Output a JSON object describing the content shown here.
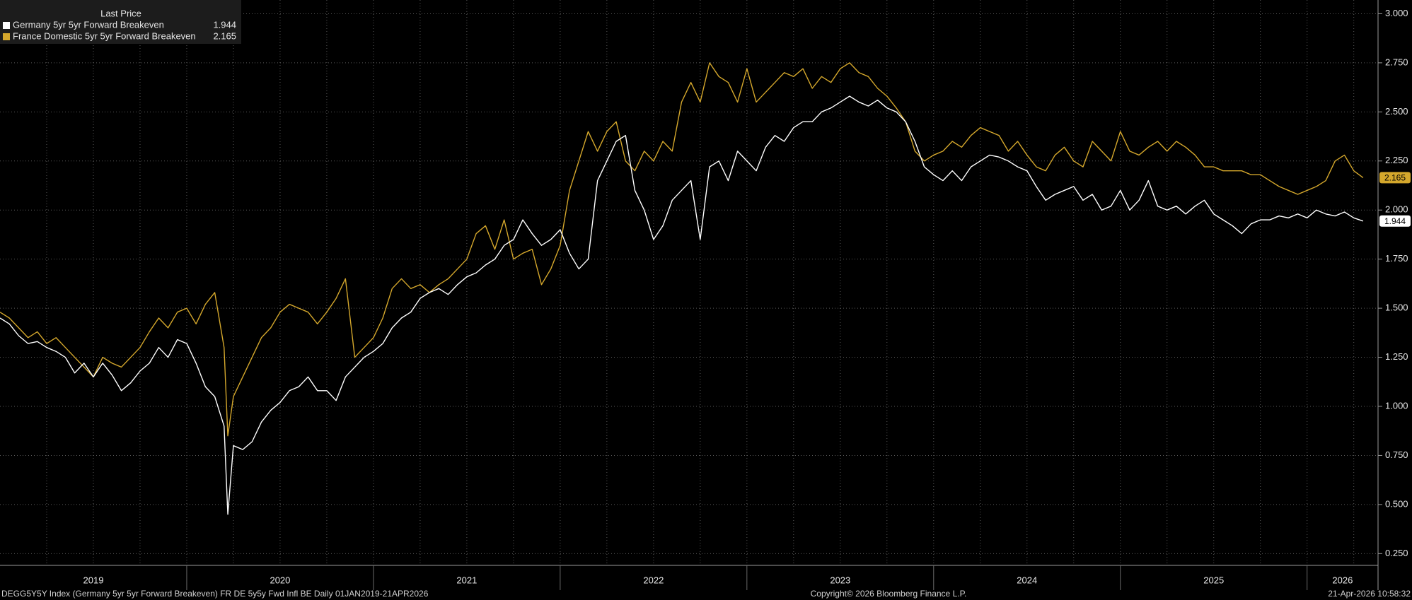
{
  "chart_data": {
    "type": "line",
    "legend_title": "Last Price",
    "legend": "upper left",
    "grid": true,
    "source_note": "DEGG5Y5Y Index (Germany 5yr 5yr Forward Breakeven) FR DE 5y5y Fwd Infl BE Daily 01JAN2019-21APR2026",
    "copyright": "Copyright© 2026 Bloomberg Finance L.P.",
    "timestamp": "21-Apr-2026 10:58:32",
    "xlim": [
      2019.0,
      2026.38
    ],
    "xticks": [
      {
        "value": 2019.5,
        "label": "2019"
      },
      {
        "value": 2020.5,
        "label": "2020"
      },
      {
        "value": 2021.5,
        "label": "2021"
      },
      {
        "value": 2022.5,
        "label": "2022"
      },
      {
        "value": 2023.5,
        "label": "2023"
      },
      {
        "value": 2024.5,
        "label": "2024"
      },
      {
        "value": 2025.5,
        "label": "2025"
      },
      {
        "value": 2026.19,
        "label": "2026"
      }
    ],
    "ylim": [
      0.19,
      3.07
    ],
    "yticks": [
      {
        "value": 0.25,
        "label": "0.250"
      },
      {
        "value": 0.5,
        "label": "0.500"
      },
      {
        "value": 0.75,
        "label": "0.750"
      },
      {
        "value": 1,
        "label": "1.000"
      },
      {
        "value": 1.25,
        "label": "1.250"
      },
      {
        "value": 1.5,
        "label": "1.500"
      },
      {
        "value": 1.75,
        "label": "1.750"
      },
      {
        "value": 2,
        "label": "2.000"
      },
      {
        "value": 2.25,
        "label": "2.250"
      },
      {
        "value": 2.5,
        "label": "2.500"
      },
      {
        "value": 2.75,
        "label": "2.750"
      },
      {
        "value": 3,
        "label": "3.000"
      }
    ],
    "x": [
      2019.0,
      2019.05,
      2019.1,
      2019.15,
      2019.2,
      2019.25,
      2019.3,
      2019.35,
      2019.4,
      2019.45,
      2019.5,
      2019.55,
      2019.6,
      2019.65,
      2019.7,
      2019.75,
      2019.8,
      2019.85,
      2019.9,
      2019.95,
      2020.0,
      2020.05,
      2020.1,
      2020.15,
      2020.2,
      2020.22,
      2020.25,
      2020.3,
      2020.35,
      2020.4,
      2020.45,
      2020.5,
      2020.55,
      2020.6,
      2020.65,
      2020.7,
      2020.75,
      2020.8,
      2020.85,
      2020.9,
      2020.95,
      2021.0,
      2021.05,
      2021.1,
      2021.15,
      2021.2,
      2021.25,
      2021.3,
      2021.35,
      2021.4,
      2021.45,
      2021.5,
      2021.55,
      2021.6,
      2021.65,
      2021.7,
      2021.75,
      2021.8,
      2021.85,
      2021.9,
      2021.95,
      2022.0,
      2022.05,
      2022.1,
      2022.15,
      2022.2,
      2022.25,
      2022.3,
      2022.35,
      2022.4,
      2022.45,
      2022.5,
      2022.55,
      2022.6,
      2022.65,
      2022.7,
      2022.75,
      2022.8,
      2022.85,
      2022.9,
      2022.95,
      2023.0,
      2023.05,
      2023.1,
      2023.15,
      2023.2,
      2023.25,
      2023.3,
      2023.35,
      2023.4,
      2023.45,
      2023.5,
      2023.55,
      2023.6,
      2023.65,
      2023.7,
      2023.75,
      2023.8,
      2023.85,
      2023.9,
      2023.95,
      2024.0,
      2024.05,
      2024.1,
      2024.15,
      2024.2,
      2024.25,
      2024.3,
      2024.35,
      2024.4,
      2024.45,
      2024.5,
      2024.55,
      2024.6,
      2024.65,
      2024.7,
      2024.75,
      2024.8,
      2024.85,
      2024.9,
      2024.95,
      2025.0,
      2025.05,
      2025.1,
      2025.15,
      2025.2,
      2025.25,
      2025.3,
      2025.35,
      2025.4,
      2025.45,
      2025.5,
      2025.55,
      2025.6,
      2025.65,
      2025.7,
      2025.75,
      2025.8,
      2025.85,
      2025.9,
      2025.95,
      2026.0,
      2026.05,
      2026.1,
      2026.15,
      2026.2,
      2026.25,
      2026.3
    ],
    "series": [
      {
        "name": "Germany 5yr 5yr Forward Breakeven",
        "color": "#ffffff",
        "values": [
          1.45,
          1.42,
          1.36,
          1.32,
          1.33,
          1.3,
          1.28,
          1.25,
          1.17,
          1.22,
          1.15,
          1.22,
          1.16,
          1.08,
          1.12,
          1.18,
          1.22,
          1.3,
          1.25,
          1.34,
          1.32,
          1.22,
          1.1,
          1.05,
          0.9,
          0.45,
          0.8,
          0.78,
          0.82,
          0.92,
          0.98,
          1.02,
          1.08,
          1.1,
          1.15,
          1.08,
          1.08,
          1.03,
          1.15,
          1.2,
          1.25,
          1.28,
          1.32,
          1.4,
          1.45,
          1.48,
          1.55,
          1.58,
          1.6,
          1.57,
          1.62,
          1.66,
          1.68,
          1.72,
          1.75,
          1.82,
          1.85,
          1.95,
          1.88,
          1.82,
          1.85,
          1.9,
          1.78,
          1.7,
          1.75,
          2.15,
          2.25,
          2.35,
          2.38,
          2.1,
          2.0,
          1.85,
          1.92,
          2.05,
          2.1,
          2.15,
          1.85,
          2.22,
          2.25,
          2.15,
          2.3,
          2.25,
          2.2,
          2.32,
          2.38,
          2.35,
          2.42,
          2.45,
          2.45,
          2.5,
          2.52,
          2.55,
          2.58,
          2.55,
          2.53,
          2.56,
          2.52,
          2.5,
          2.45,
          2.35,
          2.22,
          2.18,
          2.15,
          2.2,
          2.15,
          2.22,
          2.25,
          2.28,
          2.27,
          2.25,
          2.22,
          2.2,
          2.12,
          2.05,
          2.08,
          2.1,
          2.12,
          2.05,
          2.08,
          2.0,
          2.02,
          2.1,
          2.0,
          2.05,
          2.15,
          2.02,
          2.0,
          2.02,
          1.98,
          2.02,
          2.05,
          1.98,
          1.95,
          1.92,
          1.88,
          1.93,
          1.95,
          1.95,
          1.97,
          1.96,
          1.98,
          1.96,
          2.0,
          1.98,
          1.97,
          1.99,
          1.96,
          1.944
        ]
      },
      {
        "name": "France Domestic 5yr 5yr Forward Breakeven",
        "color": "#d4a72c",
        "values": [
          1.48,
          1.45,
          1.4,
          1.35,
          1.38,
          1.32,
          1.35,
          1.3,
          1.25,
          1.2,
          1.15,
          1.25,
          1.22,
          1.2,
          1.25,
          1.3,
          1.38,
          1.45,
          1.4,
          1.48,
          1.5,
          1.42,
          1.52,
          1.58,
          1.3,
          0.85,
          1.05,
          1.15,
          1.25,
          1.35,
          1.4,
          1.48,
          1.52,
          1.5,
          1.48,
          1.42,
          1.48,
          1.55,
          1.65,
          1.25,
          1.3,
          1.35,
          1.45,
          1.6,
          1.65,
          1.6,
          1.62,
          1.58,
          1.62,
          1.65,
          1.7,
          1.75,
          1.88,
          1.92,
          1.8,
          1.95,
          1.75,
          1.78,
          1.8,
          1.62,
          1.7,
          1.82,
          2.1,
          2.25,
          2.4,
          2.3,
          2.4,
          2.45,
          2.25,
          2.2,
          2.3,
          2.25,
          2.35,
          2.3,
          2.55,
          2.65,
          2.55,
          2.75,
          2.68,
          2.65,
          2.55,
          2.72,
          2.55,
          2.6,
          2.65,
          2.7,
          2.68,
          2.72,
          2.62,
          2.68,
          2.65,
          2.72,
          2.75,
          2.7,
          2.68,
          2.62,
          2.58,
          2.52,
          2.45,
          2.3,
          2.25,
          2.28,
          2.3,
          2.35,
          2.32,
          2.38,
          2.42,
          2.4,
          2.38,
          2.3,
          2.35,
          2.28,
          2.22,
          2.2,
          2.28,
          2.32,
          2.25,
          2.22,
          2.35,
          2.3,
          2.25,
          2.4,
          2.3,
          2.28,
          2.32,
          2.35,
          2.3,
          2.35,
          2.32,
          2.28,
          2.22,
          2.22,
          2.2,
          2.2,
          2.2,
          2.18,
          2.18,
          2.15,
          2.12,
          2.1,
          2.08,
          2.1,
          2.12,
          2.15,
          2.25,
          2.28,
          2.2,
          2.165
        ]
      }
    ]
  }
}
